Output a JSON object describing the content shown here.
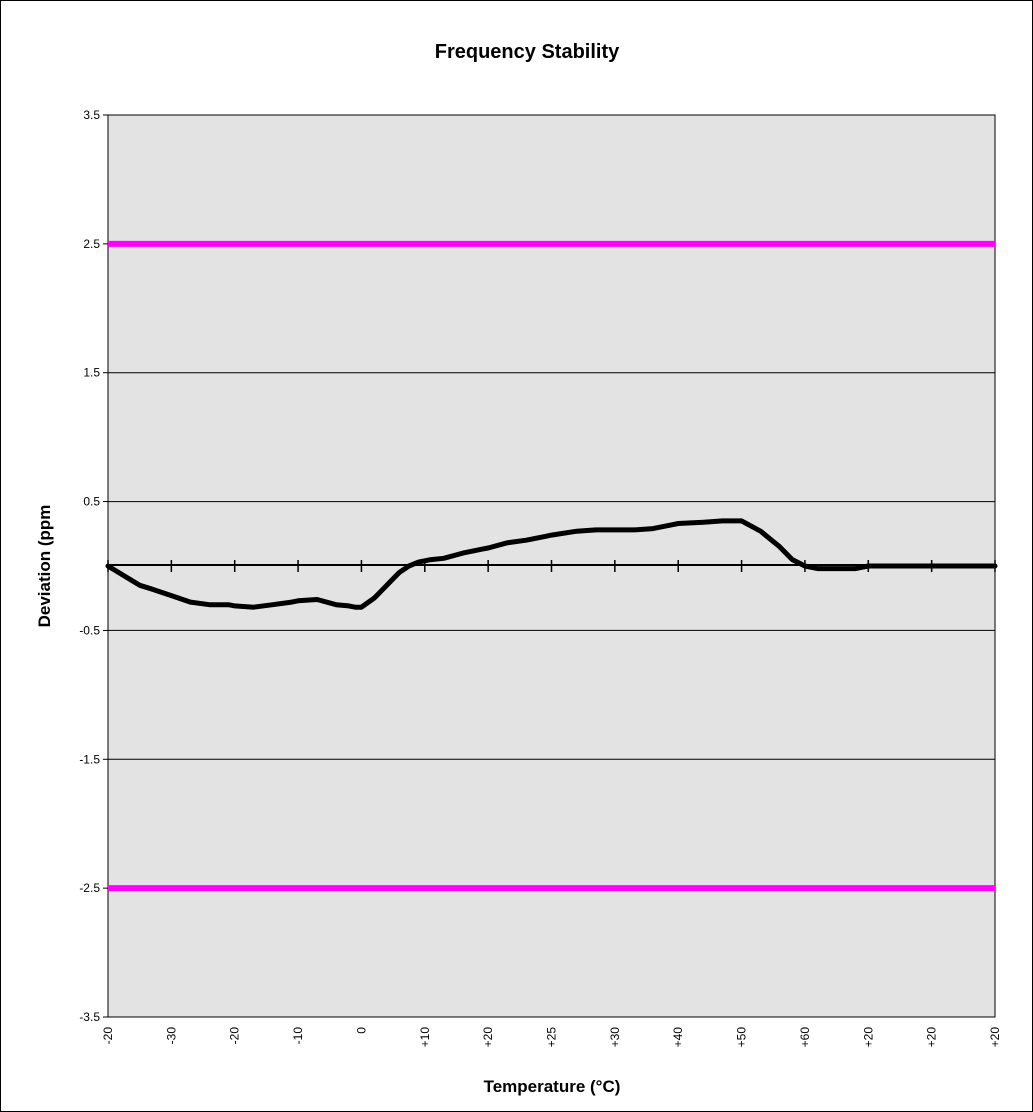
{
  "chart_data": {
    "type": "line",
    "title": "Frequency Stability",
    "xlabel": "Temperature (°C)",
    "ylabel": "Deviation (ppm",
    "ylim": [
      -3.5,
      3.5
    ],
    "yticks": [
      "3.5",
      "2.5",
      "1.5",
      "0.5",
      "-0.5",
      "-1.5",
      "-2.5",
      "-3.5"
    ],
    "ytick_values": [
      3.5,
      2.5,
      1.5,
      0.5,
      -0.5,
      -1.5,
      -2.5,
      -3.5
    ],
    "xticks": [
      "-20",
      "-30",
      "-20",
      "-10",
      "0",
      "+10",
      "+20",
      "+25",
      "+30",
      "+40",
      "+50",
      "+60",
      "+20",
      "+20",
      "+20"
    ],
    "gridlines": [
      2.5,
      1.5,
      0.5,
      -0.5,
      -1.5,
      -2.5
    ],
    "background": "#e3e3e3",
    "limit_color": "#ff00ff",
    "line_color": "#000000",
    "series": [
      {
        "name": "",
        "role": "upper-limit",
        "y_constant": 2.5
      },
      {
        "name": "",
        "role": "lower-limit",
        "y_constant": -2.5
      },
      {
        "name": "",
        "role": "measured",
        "x": [
          0,
          0.5,
          0.7,
          1.0,
          1.3,
          1.6,
          1.9,
          2.0,
          2.3,
          2.6,
          2.9,
          3.0,
          3.3,
          3.6,
          3.8,
          3.9,
          4.0,
          4.2,
          4.4,
          4.6,
          4.75,
          4.9,
          5.0,
          5.1,
          5.3,
          5.6,
          5.9,
          6.0,
          6.3,
          6.6,
          6.9,
          7.0,
          7.4,
          7.7,
          8.0,
          8.3,
          8.6,
          8.9,
          9.0,
          9.4,
          9.7,
          10.0,
          10.3,
          10.6,
          10.8,
          11.0,
          11.2,
          11.5,
          11.8,
          12.0,
          12.2,
          12.5,
          12.8,
          13.0,
          13.5,
          14.0
        ],
        "y": [
          0,
          -0.15,
          -0.18,
          -0.23,
          -0.28,
          -0.3,
          -0.3,
          -0.31,
          -0.32,
          -0.3,
          -0.28,
          -0.27,
          -0.26,
          -0.3,
          -0.31,
          -0.32,
          -0.32,
          -0.25,
          -0.15,
          -0.05,
          0.0,
          0.03,
          0.04,
          0.05,
          0.06,
          0.1,
          0.13,
          0.14,
          0.18,
          0.2,
          0.23,
          0.24,
          0.27,
          0.28,
          0.28,
          0.28,
          0.29,
          0.32,
          0.33,
          0.34,
          0.35,
          0.35,
          0.27,
          0.15,
          0.05,
          0.0,
          -0.02,
          -0.02,
          -0.02,
          0.0,
          0.0,
          0.0,
          0.0,
          0.0,
          0.0,
          0.0
        ]
      }
    ]
  }
}
